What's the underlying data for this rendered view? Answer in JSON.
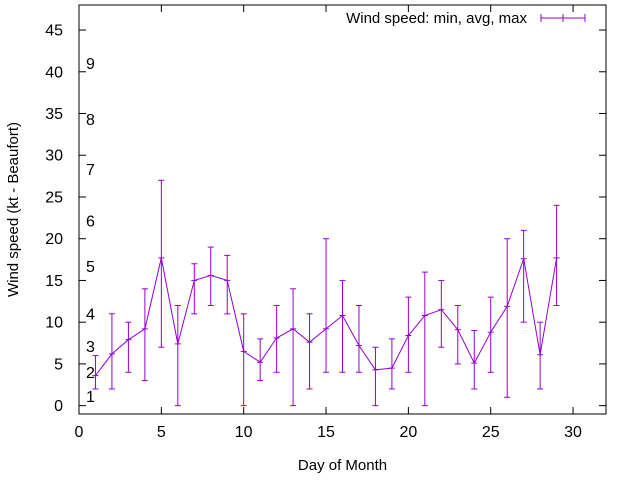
{
  "chart_data": {
    "type": "line",
    "title": "",
    "xlabel": "Day of Month",
    "ylabel": "Wind speed (kt - Beaufort)",
    "xlim": [
      0,
      32
    ],
    "ylim": [
      -1,
      48
    ],
    "xticks": [
      0,
      5,
      10,
      15,
      20,
      25,
      30
    ],
    "yticks": [
      0,
      5,
      10,
      15,
      20,
      25,
      30,
      35,
      40,
      45
    ],
    "beaufort_labels": [
      {
        "value": 1,
        "label": "1"
      },
      {
        "value": 2,
        "label": "2"
      },
      {
        "value": 3,
        "label": "3"
      },
      {
        "value": 4,
        "label": "4"
      },
      {
        "value": 5,
        "label": "5"
      },
      {
        "value": 6,
        "label": "6"
      },
      {
        "value": 7,
        "label": "7"
      },
      {
        "value": 8,
        "label": "8"
      },
      {
        "value": 9,
        "label": "9"
      }
    ],
    "grid": false,
    "legend_position": "top-right",
    "series": [
      {
        "name": "Wind speed: min, avg, max",
        "color": "#9400d3",
        "x": [
          1,
          2,
          3,
          4,
          5,
          6,
          7,
          8,
          9,
          10,
          11,
          12,
          13,
          14,
          15,
          16,
          17,
          18,
          19,
          20,
          21,
          22,
          23,
          24,
          25,
          26,
          27,
          28,
          29
        ],
        "avg": [
          3.6,
          6.2,
          7.9,
          9.2,
          17.7,
          7.4,
          15.0,
          15.6,
          15.0,
          6.5,
          5.2,
          8.1,
          9.2,
          7.6,
          9.2,
          10.8,
          7.2,
          4.3,
          4.5,
          8.4,
          10.8,
          11.5,
          9.1,
          5.1,
          8.8,
          11.9,
          17.6,
          6.1,
          17.7
        ],
        "min": [
          2,
          2,
          4,
          3,
          7,
          0,
          11,
          12,
          11,
          0,
          3,
          4,
          0,
          2,
          4,
          4,
          4,
          0,
          2,
          4,
          0,
          7,
          5,
          2,
          4,
          1,
          10,
          2,
          12
        ],
        "max": [
          6,
          11,
          10,
          14,
          27,
          12,
          17,
          19,
          18,
          11,
          8,
          12,
          14,
          11,
          20,
          15,
          12,
          7,
          8,
          13,
          16,
          15,
          12,
          9,
          13,
          20,
          21,
          10,
          24
        ]
      }
    ]
  }
}
